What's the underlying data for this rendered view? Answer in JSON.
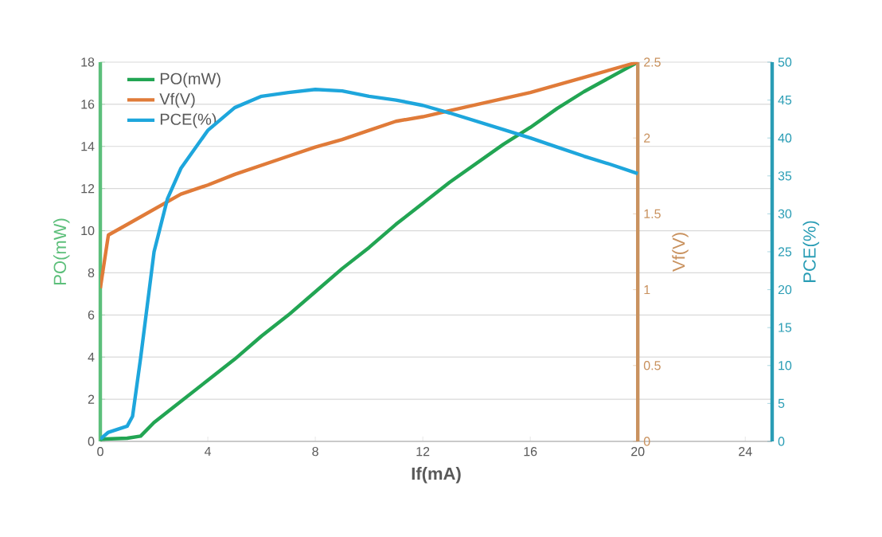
{
  "chart_data": {
    "type": "line",
    "xlabel": "If(mA)",
    "ylabel": "PO(mW)",
    "y2label": "Vf(V)",
    "y3label": "PCE(%)",
    "xlim": [
      0,
      25
    ],
    "xticks": [
      0,
      4,
      8,
      12,
      16,
      20,
      24
    ],
    "ylim": [
      0,
      18
    ],
    "yticks": [
      0,
      2,
      4,
      6,
      8,
      10,
      12,
      14,
      16,
      18
    ],
    "y2lim": [
      0,
      2.5
    ],
    "y2ticks": [
      0,
      0.5,
      1,
      1.5,
      2,
      2.5
    ],
    "y3lim": [
      0,
      50
    ],
    "y3ticks": [
      0,
      5,
      10,
      15,
      20,
      25,
      30,
      35,
      40,
      45,
      50
    ],
    "grid": "y",
    "legend": "top left",
    "marker": "none",
    "line_style": "solid",
    "series": [
      {
        "name": "PO(mW)",
        "color": "#22a553",
        "axis": "y",
        "x": [
          0,
          1,
          1.5,
          2,
          3,
          4,
          5,
          6,
          7,
          8,
          9,
          10,
          11,
          12,
          13,
          14,
          15,
          16,
          17,
          18,
          19,
          20
        ],
        "values": [
          0.1,
          0.15,
          0.25,
          0.9,
          1.9,
          2.9,
          3.9,
          5.0,
          6.0,
          7.1,
          8.2,
          9.2,
          10.3,
          11.3,
          12.3,
          13.2,
          14.1,
          14.9,
          15.8,
          16.6,
          17.3,
          18
        ]
      },
      {
        "name": "Vf(V)",
        "color": "#e07b39",
        "axis": "y2",
        "x": [
          0,
          0.3,
          1,
          2,
          3,
          4,
          5,
          6,
          7,
          8,
          9,
          10,
          11,
          12,
          13,
          14,
          16,
          18,
          20
        ],
        "values": [
          1.01,
          1.36,
          1.43,
          1.53,
          1.63,
          1.69,
          1.76,
          1.82,
          1.88,
          1.94,
          1.99,
          2.05,
          2.11,
          2.14,
          2.18,
          2.22,
          2.3,
          2.4,
          2.5
        ]
      },
      {
        "name": "PCE(%)",
        "color": "#1ea6dc",
        "axis": "y3",
        "x": [
          0,
          0.3,
          1,
          1.2,
          1.5,
          2,
          2.5,
          3,
          4,
          5,
          6,
          7,
          8,
          9,
          10,
          11,
          12,
          13,
          14,
          15,
          16,
          17,
          18,
          19,
          20
        ],
        "values": [
          0.3,
          1.2,
          2,
          3.3,
          11,
          25,
          32,
          36,
          41,
          44,
          45.5,
          46,
          46.4,
          46.2,
          45.5,
          45,
          44.3,
          43.3,
          42.2,
          41.1,
          40,
          38.8,
          37.6,
          36.5,
          35.3
        ]
      }
    ]
  }
}
